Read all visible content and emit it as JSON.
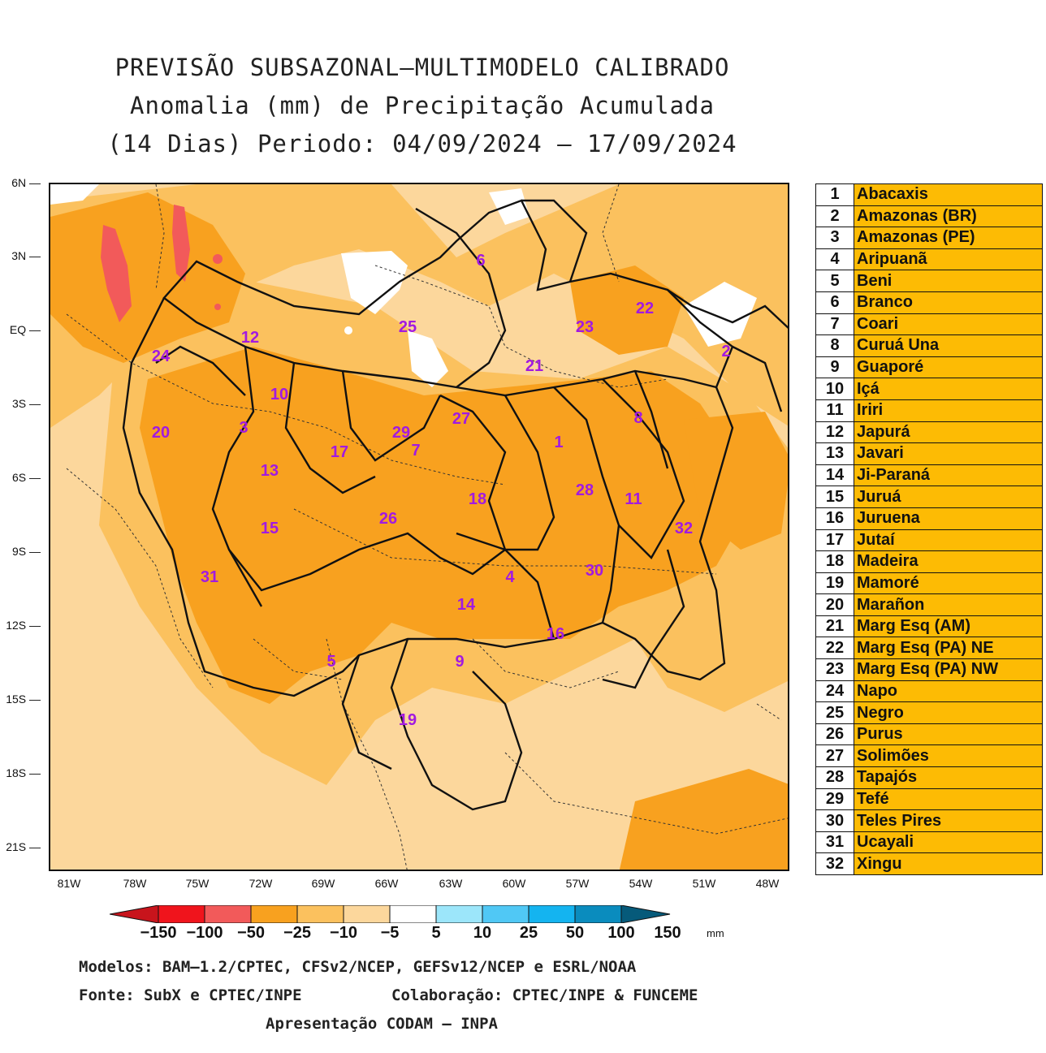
{
  "title": {
    "line1": "PREVISÃO SUBSAZONAL—MULTIMODELO CALIBRADO",
    "line2": "Anomalia (mm) de Precipitação Acumulada",
    "line3": "(14 Dias) Periodo: 04/09/2024 — 17/09/2024"
  },
  "map": {
    "lat_labels": [
      "6N",
      "3N",
      "EQ",
      "3S",
      "6S",
      "9S",
      "12S",
      "15S",
      "18S",
      "21S"
    ],
    "lon_labels": [
      "81W",
      "78W",
      "75W",
      "72W",
      "69W",
      "66W",
      "63W",
      "60W",
      "57W",
      "54W",
      "51W",
      "48W"
    ],
    "basin_labels": [
      {
        "id": "1"
      },
      {
        "id": "2"
      },
      {
        "id": "3"
      },
      {
        "id": "4"
      },
      {
        "id": "5"
      },
      {
        "id": "6"
      },
      {
        "id": "7"
      },
      {
        "id": "8"
      },
      {
        "id": "9"
      },
      {
        "id": "10"
      },
      {
        "id": "11"
      },
      {
        "id": "12"
      },
      {
        "id": "13"
      },
      {
        "id": "14"
      },
      {
        "id": "15"
      },
      {
        "id": "16"
      },
      {
        "id": "17"
      },
      {
        "id": "18"
      },
      {
        "id": "19"
      },
      {
        "id": "20"
      },
      {
        "id": "21"
      },
      {
        "id": "22"
      },
      {
        "id": "23"
      },
      {
        "id": "24"
      },
      {
        "id": "25"
      },
      {
        "id": "26"
      },
      {
        "id": "27"
      },
      {
        "id": "28"
      },
      {
        "id": "29"
      },
      {
        "id": "30"
      },
      {
        "id": "31"
      },
      {
        "id": "32"
      }
    ],
    "colors": {
      "dry_strong": "#f25a5a",
      "dry_mod": "#f8a11f",
      "dry_light": "#fbc15e",
      "dry_weak": "#fcd79c",
      "neutral": "#ffffff",
      "label": "#a21ae0"
    }
  },
  "basins": [
    {
      "num": "1",
      "name": "Abacaxis"
    },
    {
      "num": "2",
      "name": "Amazonas (BR)"
    },
    {
      "num": "3",
      "name": "Amazonas (PE)"
    },
    {
      "num": "4",
      "name": "Aripuanã"
    },
    {
      "num": "5",
      "name": "Beni"
    },
    {
      "num": "6",
      "name": "Branco"
    },
    {
      "num": "7",
      "name": "Coari"
    },
    {
      "num": "8",
      "name": "Curuá Una"
    },
    {
      "num": "9",
      "name": "Guaporé"
    },
    {
      "num": "10",
      "name": "Içá"
    },
    {
      "num": "11",
      "name": "Iriri"
    },
    {
      "num": "12",
      "name": "Japurá"
    },
    {
      "num": "13",
      "name": "Javari"
    },
    {
      "num": "14",
      "name": "Ji-Paraná"
    },
    {
      "num": "15",
      "name": "Juruá"
    },
    {
      "num": "16",
      "name": "Juruena"
    },
    {
      "num": "17",
      "name": "Jutaí"
    },
    {
      "num": "18",
      "name": "Madeira"
    },
    {
      "num": "19",
      "name": "Mamoré"
    },
    {
      "num": "20",
      "name": "Marañon"
    },
    {
      "num": "21",
      "name": "Marg Esq (AM)"
    },
    {
      "num": "22",
      "name": "Marg Esq (PA) NE"
    },
    {
      "num": "23",
      "name": "Marg Esq (PA) NW"
    },
    {
      "num": "24",
      "name": "Napo"
    },
    {
      "num": "25",
      "name": "Negro"
    },
    {
      "num": "26",
      "name": "Purus"
    },
    {
      "num": "27",
      "name": "Solimões"
    },
    {
      "num": "28",
      "name": "Tapajós"
    },
    {
      "num": "29",
      "name": "Tefé"
    },
    {
      "num": "30",
      "name": "Teles Pires"
    },
    {
      "num": "31",
      "name": "Ucayali"
    },
    {
      "num": "32",
      "name": "Xingu"
    }
  ],
  "colorbar": {
    "labels": [
      "−150",
      "−100",
      "−50",
      "−25",
      "−10",
      "−5",
      "5",
      "10",
      "25",
      "50",
      "100",
      "150"
    ],
    "unit": "mm",
    "colors": [
      "#c8141c",
      "#f0141c",
      "#f25a5a",
      "#f8a11f",
      "#fbc15e",
      "#fcd79c",
      "#ffffff",
      "#9ce6fa",
      "#50c8f5",
      "#14b4f0",
      "#0a8cbe",
      "#065a7a"
    ]
  },
  "footer": {
    "models": "Modelos: BAM—1.2/CPTEC, CFSv2/NCEP, GEFSv12/NCEP e ESRL/NOAA",
    "source": "Fonte: SubX e CPTEC/INPE",
    "collab": "Colaboração: CPTEC/INPE & FUNCEME",
    "presentation": "Apresentação CODAM — INPA"
  }
}
